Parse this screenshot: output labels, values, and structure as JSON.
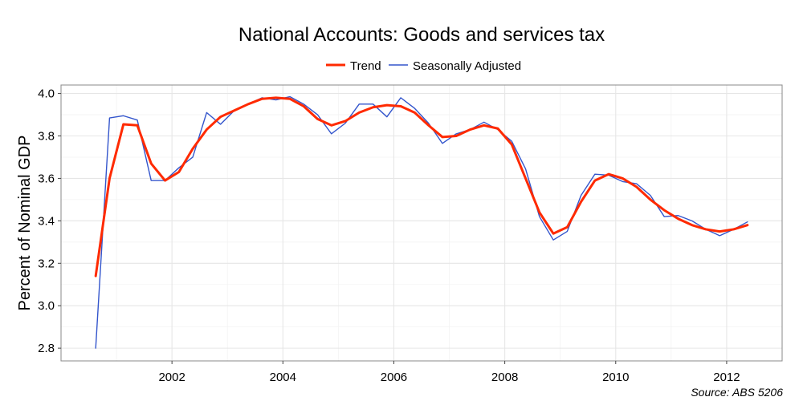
{
  "chart_data": {
    "type": "line",
    "title": "National Accounts: Goods and services tax",
    "xlabel": "",
    "ylabel": "Percent of Nominal GDP",
    "source": "Source: ABS 5206",
    "xlim": [
      2000.0,
      2013.0
    ],
    "ylim": [
      2.74,
      4.04
    ],
    "x_ticks": [
      2002,
      2004,
      2006,
      2008,
      2010,
      2012
    ],
    "y_ticks": [
      2.8,
      3.0,
      3.2,
      3.4,
      3.6,
      3.8,
      4.0
    ],
    "y_tick_labels": [
      "2.8",
      "3.0",
      "3.2",
      "3.4",
      "3.6",
      "3.8",
      "4.0"
    ],
    "grid": true,
    "legend_position": "top",
    "series": [
      {
        "name": "Trend",
        "color": "#ff2a00",
        "x": [
          2000.625,
          2000.875,
          2001.125,
          2001.375,
          2001.625,
          2001.875,
          2002.125,
          2002.375,
          2002.625,
          2002.875,
          2003.125,
          2003.375,
          2003.625,
          2003.875,
          2004.125,
          2004.375,
          2004.625,
          2004.875,
          2005.125,
          2005.375,
          2005.625,
          2005.875,
          2006.125,
          2006.375,
          2006.625,
          2006.875,
          2007.125,
          2007.375,
          2007.625,
          2007.875,
          2008.125,
          2008.375,
          2008.625,
          2008.875,
          2009.125,
          2009.375,
          2009.625,
          2009.875,
          2010.125,
          2010.375,
          2010.625,
          2010.875,
          2011.125,
          2011.375,
          2011.625,
          2011.875,
          2012.125,
          2012.375
        ],
        "values": [
          3.14,
          3.6,
          3.855,
          3.85,
          3.67,
          3.59,
          3.63,
          3.74,
          3.83,
          3.89,
          3.92,
          3.95,
          3.975,
          3.98,
          3.975,
          3.94,
          3.88,
          3.85,
          3.87,
          3.91,
          3.935,
          3.945,
          3.94,
          3.91,
          3.85,
          3.795,
          3.8,
          3.83,
          3.85,
          3.835,
          3.76,
          3.6,
          3.44,
          3.34,
          3.37,
          3.49,
          3.59,
          3.62,
          3.6,
          3.56,
          3.5,
          3.45,
          3.41,
          3.38,
          3.36,
          3.35,
          3.36,
          3.38
        ]
      },
      {
        "name": "Seasonally Adjusted",
        "color": "#3355cc",
        "x": [
          2000.625,
          2000.875,
          2001.125,
          2001.375,
          2001.625,
          2001.875,
          2002.125,
          2002.375,
          2002.625,
          2002.875,
          2003.125,
          2003.375,
          2003.625,
          2003.875,
          2004.125,
          2004.375,
          2004.625,
          2004.875,
          2005.125,
          2005.375,
          2005.625,
          2005.875,
          2006.125,
          2006.375,
          2006.625,
          2006.875,
          2007.125,
          2007.375,
          2007.625,
          2007.875,
          2008.125,
          2008.375,
          2008.625,
          2008.875,
          2009.125,
          2009.375,
          2009.625,
          2009.875,
          2010.125,
          2010.375,
          2010.625,
          2010.875,
          2011.125,
          2011.375,
          2011.625,
          2011.875,
          2012.125,
          2012.375
        ],
        "values": [
          2.8,
          3.885,
          3.895,
          3.875,
          3.59,
          3.59,
          3.65,
          3.7,
          3.91,
          3.855,
          3.92,
          3.95,
          3.98,
          3.97,
          3.985,
          3.95,
          3.9,
          3.81,
          3.86,
          3.95,
          3.95,
          3.89,
          3.98,
          3.93,
          3.86,
          3.765,
          3.81,
          3.83,
          3.865,
          3.83,
          3.775,
          3.645,
          3.42,
          3.31,
          3.35,
          3.52,
          3.62,
          3.615,
          3.585,
          3.575,
          3.52,
          3.42,
          3.425,
          3.4,
          3.36,
          3.33,
          3.36,
          3.395
        ]
      }
    ]
  }
}
